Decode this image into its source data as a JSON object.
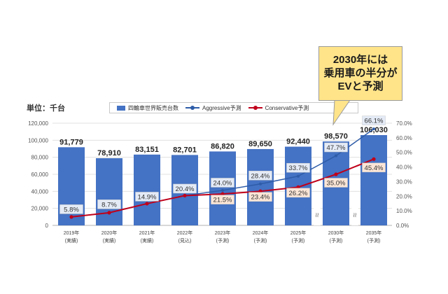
{
  "unit_label": "単位：千台",
  "callout": [
    "2030年には",
    "乗用車の半分が",
    "EVと予測"
  ],
  "colors": {
    "bar": "#4472c4",
    "aggressive": "#2e5ca8",
    "conservative": "#c0001a",
    "agg_label_bg": "#e4ebf6",
    "cons_label_bg": "#fbe5d6"
  },
  "chart_data": {
    "type": "bar",
    "categories": [
      [
        "2019年",
        "(実績)"
      ],
      [
        "2020年",
        "(実績)"
      ],
      [
        "2021年",
        "(実績)"
      ],
      [
        "2022年",
        "(見込)"
      ],
      [
        "2023年",
        "(予測)"
      ],
      [
        "2024年",
        "(予測)"
      ],
      [
        "2025年",
        "(予測)"
      ],
      [
        "2030年",
        "(予測)"
      ],
      [
        "2035年",
        "(予測)"
      ]
    ],
    "bar_series": {
      "name": "四輪車世界販売台数",
      "values": [
        91779,
        78910,
        83151,
        82701,
        86820,
        89650,
        92440,
        98570,
        106030
      ],
      "labels": [
        "91,779",
        "78,910",
        "83,151",
        "82,701",
        "86,820",
        "89,650",
        "92,440",
        "98,570",
        "106,030"
      ]
    },
    "series": [
      {
        "name": "Aggressive予測",
        "axis": "right",
        "values": [
          5.8,
          8.7,
          14.9,
          20.4,
          24.0,
          28.4,
          33.7,
          47.7,
          66.1
        ],
        "labels": [
          "5.8%",
          "8.7%",
          "14.9%",
          "20.4%",
          "24.0%",
          "28.4%",
          "33.7%",
          "47.7%",
          "66.1%"
        ]
      },
      {
        "name": "Conservative予測",
        "axis": "right",
        "values": [
          5.8,
          8.7,
          14.9,
          20.4,
          21.5,
          23.4,
          26.2,
          35.0,
          45.4
        ],
        "labels": [
          "",
          "",
          "",
          "",
          "21.5%",
          "23.4%",
          "26.2%",
          "35.0%",
          "45.4%"
        ]
      }
    ],
    "y_left": {
      "ylim": [
        0,
        120000
      ],
      "ticks": [
        "0",
        "20,000",
        "40,000",
        "60,000",
        "80,000",
        "100,000",
        "120,000"
      ]
    },
    "y_right": {
      "ylim": [
        0,
        70
      ],
      "ticks": [
        "0.0%",
        "10.0%",
        "20.0%",
        "30.0%",
        "40.0%",
        "50.0%",
        "60.0%",
        "70.0%"
      ]
    },
    "axis_break_after_index": [
      6,
      7
    ],
    "break_mark": "≈",
    "grid": true,
    "legend_position": "top"
  }
}
